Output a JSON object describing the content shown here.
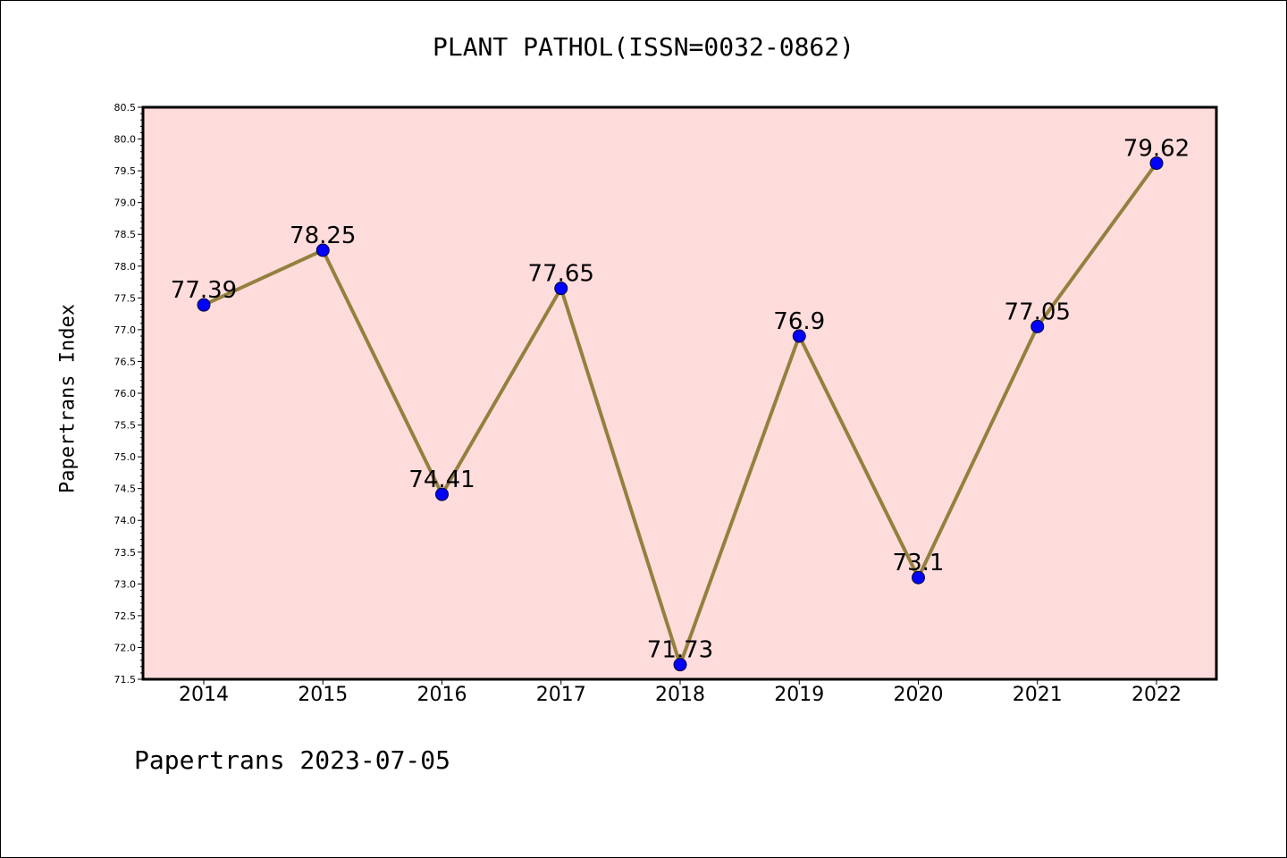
{
  "page": {
    "title": "PLANT PATHOL(ISSN=0032-0862)",
    "ylabel": "Papertrans Index",
    "footer": "Papertrans 2023-07-05"
  },
  "chart_data": {
    "type": "line",
    "title": "PLANT PATHOL(ISSN=0032-0862)",
    "xlabel": "",
    "ylabel": "Papertrans Index",
    "categories": [
      "2014",
      "2015",
      "2016",
      "2017",
      "2018",
      "2019",
      "2020",
      "2021",
      "2022"
    ],
    "series": [
      {
        "values": [
          77.39,
          78.25,
          74.41,
          77.65,
          71.73,
          76.9,
          73.1,
          77.05,
          79.62
        ]
      }
    ],
    "data_labels": [
      "77.39",
      "78.25",
      "74.41",
      "77.65",
      "71.73",
      "76.9",
      "73.1",
      "77.05",
      "79.62"
    ],
    "ylim": [
      71.5,
      80.5
    ],
    "yticks": [
      "71.5",
      "72.0",
      "72.5",
      "73.0",
      "73.5",
      "74.0",
      "74.5",
      "75.0",
      "75.5",
      "76.0",
      "76.5",
      "77.0",
      "77.5",
      "78.0",
      "78.5",
      "79.0",
      "79.5",
      "80.0",
      "80.5"
    ],
    "grid": false,
    "colors": {
      "plot_background": "#ffdcdc",
      "line": "#94803e",
      "marker": "#0000ff",
      "marker_edge": "#000033"
    }
  }
}
